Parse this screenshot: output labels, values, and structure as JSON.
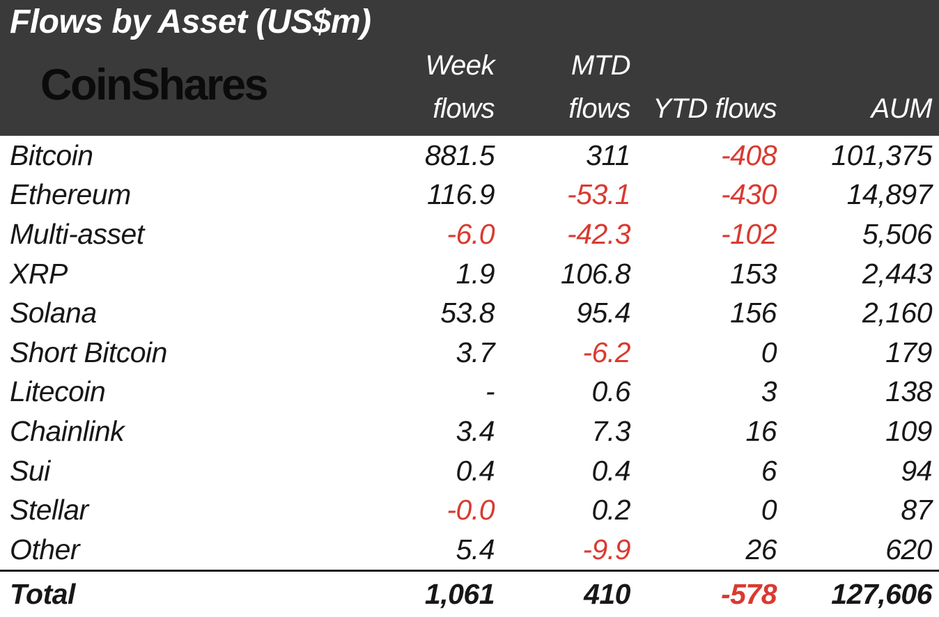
{
  "title": "Flows by Asset (US$m)",
  "logo_text": "CoinShares",
  "colors": {
    "header_bg": "#3a3a3a",
    "header_text": "#ffffff",
    "body_text": "#171717",
    "negative_red": "#d93a30",
    "logo_black": "#0b0b0b"
  },
  "table": {
    "columns": {
      "week_line1": "Week",
      "week_line2": "flows",
      "mtd_line1": "MTD",
      "mtd_line2": "flows",
      "ytd": "YTD flows",
      "aum": "AUM"
    },
    "rows": [
      {
        "asset": "Bitcoin",
        "week": "881.5",
        "mtd": "311",
        "ytd": "-408",
        "aum": "101,375"
      },
      {
        "asset": "Ethereum",
        "week": "116.9",
        "mtd": "-53.1",
        "ytd": "-430",
        "aum": "14,897"
      },
      {
        "asset": "Multi-asset",
        "week": "-6.0",
        "mtd": "-42.3",
        "ytd": "-102",
        "aum": "5,506"
      },
      {
        "asset": "XRP",
        "week": "1.9",
        "mtd": "106.8",
        "ytd": "153",
        "aum": "2,443"
      },
      {
        "asset": "Solana",
        "week": "53.8",
        "mtd": "95.4",
        "ytd": "156",
        "aum": "2,160"
      },
      {
        "asset": "Short Bitcoin",
        "week": "3.7",
        "mtd": "-6.2",
        "ytd": "0",
        "aum": "179"
      },
      {
        "asset": "Litecoin",
        "week": "-",
        "mtd": "0.6",
        "ytd": "3",
        "aum": "138"
      },
      {
        "asset": "Chainlink",
        "week": "3.4",
        "mtd": "7.3",
        "ytd": "16",
        "aum": "109"
      },
      {
        "asset": "Sui",
        "week": "0.4",
        "mtd": "0.4",
        "ytd": "6",
        "aum": "94"
      },
      {
        "asset": "Stellar",
        "week": "-0.0",
        "mtd": "0.2",
        "ytd": "0",
        "aum": "87"
      },
      {
        "asset": "Other",
        "week": "5.4",
        "mtd": "-9.9",
        "ytd": "26",
        "aum": "620"
      }
    ],
    "total": {
      "label": "Total",
      "week": "1,061",
      "mtd": "410",
      "ytd": "-578",
      "aum": "127,606"
    }
  },
  "chart_data": {
    "type": "table",
    "title": "Flows by Asset (US$m)",
    "columns": [
      "Asset",
      "Week flows",
      "MTD flows",
      "YTD flows",
      "AUM"
    ],
    "categories": [
      "Bitcoin",
      "Ethereum",
      "Multi-asset",
      "XRP",
      "Solana",
      "Short Bitcoin",
      "Litecoin",
      "Chainlink",
      "Sui",
      "Stellar",
      "Other"
    ],
    "series": [
      {
        "name": "Week flows",
        "values": [
          881.5,
          116.9,
          -6.0,
          1.9,
          53.8,
          3.7,
          null,
          3.4,
          0.4,
          -0.0,
          5.4
        ]
      },
      {
        "name": "MTD flows",
        "values": [
          311,
          -53.1,
          -42.3,
          106.8,
          95.4,
          -6.2,
          0.6,
          7.3,
          0.4,
          0.2,
          -9.9
        ]
      },
      {
        "name": "YTD flows",
        "values": [
          -408,
          -430,
          -102,
          153,
          156,
          0,
          3,
          16,
          6,
          0,
          26
        ]
      },
      {
        "name": "AUM",
        "values": [
          101375,
          14897,
          5506,
          2443,
          2160,
          179,
          138,
          109,
          94,
          87,
          620
        ]
      }
    ],
    "totals": {
      "Week flows": 1061,
      "MTD flows": 410,
      "YTD flows": -578,
      "AUM": 127606
    },
    "negative_value_color": "#d93a30"
  }
}
